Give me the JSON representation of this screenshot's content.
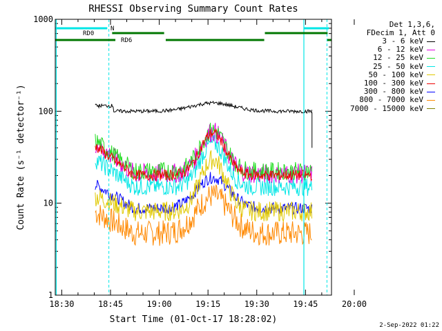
{
  "chart_data": {
    "type": "line",
    "title": "RHESSI Observing Summary Count Rates",
    "xlabel": "Start Time (01-Oct-17 18:28:02)",
    "ylabel": "Count Rate (s⁻¹ detector⁻¹)",
    "yscale": "log",
    "ylim": [
      1,
      1000
    ],
    "xlim_minutes": [
      -2,
      83
    ],
    "x_tick_labels": [
      "18:30",
      "18:45",
      "19:00",
      "19:15",
      "19:30",
      "19:45",
      "20:00"
    ],
    "x_tick_minutes": [
      0,
      15,
      30,
      45,
      60,
      75,
      90
    ],
    "y_tick_labels": [
      "1",
      "10",
      "100",
      "1000"
    ],
    "y_tick_values": [
      1,
      10,
      100,
      1000
    ],
    "legend_header": [
      "Det 1,3,6,",
      "FDecim 1, Att 0"
    ],
    "series": [
      {
        "name": "3 - 6 keV",
        "color": "#000000",
        "start": 100,
        "peak": 122,
        "end": 98
      },
      {
        "name": "6 - 12 keV",
        "color": "#e000e0",
        "start": 45,
        "peak": 60,
        "end": 14
      },
      {
        "name": "12 - 25 keV",
        "color": "#22dd22",
        "start": 48,
        "peak": 62,
        "end": 15
      },
      {
        "name": "25 - 50 keV",
        "color": "#00e6e6",
        "start": 30,
        "peak": 45,
        "end": 11
      },
      {
        "name": "50 - 100 keV",
        "color": "#e0c800",
        "start": 12,
        "peak": 30,
        "end": 8
      },
      {
        "name": "100 - 300 keV",
        "color": "#ee0000",
        "start": 42,
        "peak": 58,
        "end": 14
      },
      {
        "name": "300 - 800 keV",
        "color": "#0000ff",
        "start": 16,
        "peak": 19,
        "end": 7
      },
      {
        "name": "800 - 7000 keV",
        "color": "#ff8800",
        "start": 8,
        "peak": 12,
        "end": 4
      },
      {
        "name": "7000 - 15000 keV",
        "color": "#808000",
        "start": null,
        "peak": null,
        "end": null
      }
    ],
    "annotations": {
      "night_label": "N",
      "rd0_label": "RD0",
      "rd6_label": "RD6"
    },
    "colors": {
      "eclipse": "#00e6e6",
      "rd_bar": "#007700"
    }
  },
  "footer": {
    "timestamp": "2-Sep-2022 01:22"
  }
}
